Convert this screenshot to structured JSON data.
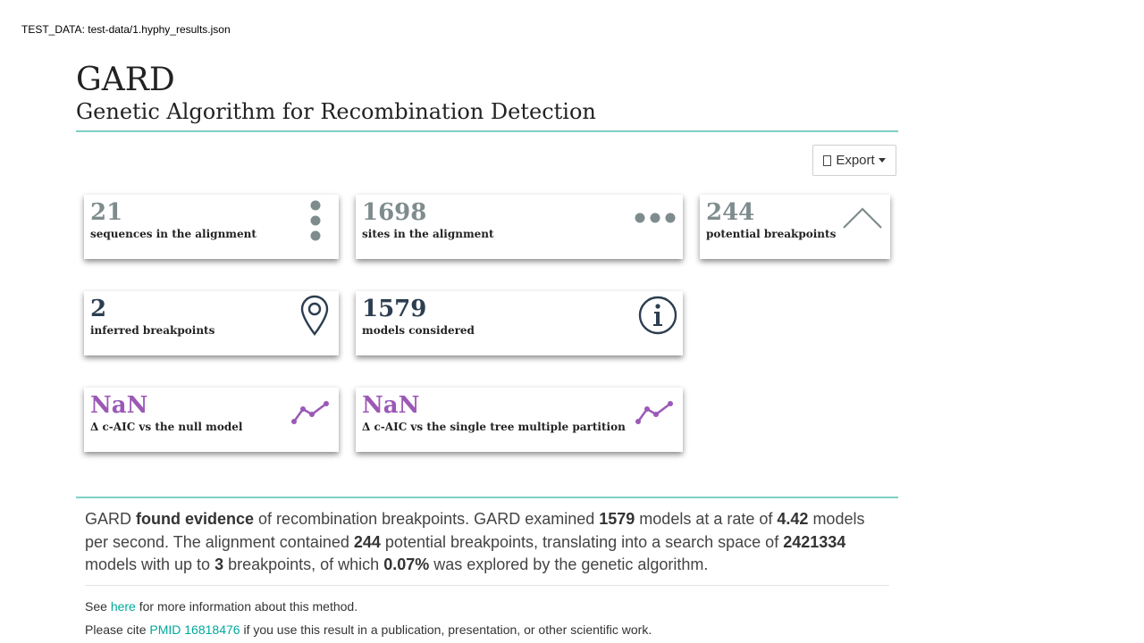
{
  "test_data_label": "TEST_DATA: test-data/1.hyphy_results.json",
  "header": {
    "title": "GARD",
    "subtitle": "Genetic Algorithm for Recombination Detection"
  },
  "export": {
    "label": "Export"
  },
  "cards": [
    {
      "value": "21",
      "label": "sequences in the alignment",
      "icon": "vertical-dots-icon"
    },
    {
      "value": "1698",
      "label": "sites in the alignment",
      "icon": "horizontal-dots-icon"
    },
    {
      "value": "244",
      "label": "potential breakpoints",
      "icon": "chevron-up-icon"
    },
    {
      "value": "2",
      "label": "inferred breakpoints",
      "icon": "map-pin-icon"
    },
    {
      "value": "1579",
      "label": "models considered",
      "icon": "info-icon"
    },
    {
      "value": "NaN",
      "label": "Δ c-AIC vs the null model",
      "icon": "line-chart-icon"
    },
    {
      "value": "NaN",
      "label": "Δ c-AIC vs the single tree multiple partition",
      "icon": "line-chart-icon"
    }
  ],
  "colors": {
    "grey": "#7f8c8d",
    "dark": "#2c3e50",
    "purple": "#9b59b6",
    "accent_rule": "#7fcfc4",
    "link": "#00a99d"
  },
  "summary": {
    "p1": "GARD ",
    "found": "found evidence",
    "p2": " of recombination breakpoints. GARD examined ",
    "models": "1579",
    "p3": " models at a rate of ",
    "rate": "4.42",
    "p4": " models per second. The alignment contained ",
    "potential": "244",
    "p5": " potential breakpoints, translating into a search space of ",
    "space": "2421334",
    "p6": " models with up to ",
    "upto": "3",
    "p7": " breakpoints, of which ",
    "pct": "0.07%",
    "p8": " was explored by the genetic algorithm."
  },
  "notes": {
    "see_pre": "See ",
    "see_link": "here",
    "see_post": " for more information about this method.",
    "cite_pre": "Please cite ",
    "cite_link": "PMID 16818476",
    "cite_post": " if you use this result in a publication, presentation, or other scientific work."
  }
}
